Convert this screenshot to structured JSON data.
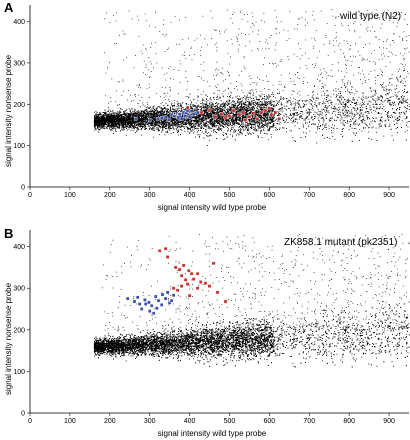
{
  "chart_data": [
    {
      "type": "scatter",
      "panel_label": "A",
      "title": "wild type (N2)",
      "xlabel": "signal intensity wild type probe",
      "ylabel": "signal intensity nonsense probe",
      "xlim": [
        0,
        950
      ],
      "ylim": [
        0,
        440
      ],
      "xticks": [
        "0",
        "100",
        "200",
        "300",
        "400",
        "500",
        "600",
        "700",
        "800",
        "900"
      ],
      "yticks": [
        "0",
        "100",
        "200",
        "300",
        "400"
      ],
      "grid": false,
      "background_cloud": {
        "description": "dense black point cloud, ~15000 probes",
        "x_range": [
          160,
          950
        ],
        "y_center_start": 160,
        "y_center_end": 190,
        "y_spread_start": 14,
        "y_spread_end": 55,
        "sparse_x_max": 950,
        "sparse_y_max": 430
      },
      "series": [
        {
          "color": "#3a4fa8",
          "points": [
            [
              265,
              165
            ],
            [
              300,
              162
            ],
            [
              320,
              165
            ],
            [
              340,
              168
            ],
            [
              355,
              175
            ],
            [
              365,
              172
            ],
            [
              375,
              176
            ],
            [
              385,
              180
            ],
            [
              392,
              178
            ],
            [
              400,
              170
            ],
            [
              405,
              183
            ],
            [
              330,
              167
            ],
            [
              348,
              163
            ],
            [
              362,
              171
            ],
            [
              372,
              168
            ],
            [
              395,
              185
            ],
            [
              410,
              176
            ],
            [
              380,
              164
            ],
            [
              388,
              172
            ],
            [
              420,
              180
            ]
          ]
        },
        {
          "color": "#c83030",
          "points": [
            [
              395,
              192
            ],
            [
              430,
              180
            ],
            [
              450,
              185
            ],
            [
              465,
              170
            ],
            [
              480,
              177
            ],
            [
              500,
              172
            ],
            [
              510,
              185
            ],
            [
              525,
              175
            ],
            [
              535,
              180
            ],
            [
              550,
              170
            ],
            [
              560,
              178
            ],
            [
              570,
              165
            ],
            [
              580,
              180
            ],
            [
              590,
              185
            ],
            [
              600,
              190
            ],
            [
              605,
              175
            ],
            [
              615,
              180
            ],
            [
              625,
              165
            ],
            [
              540,
              162
            ],
            [
              490,
              168
            ]
          ]
        }
      ]
    },
    {
      "type": "scatter",
      "panel_label": "B",
      "title": "ZK858.1 mutant (pk2351)",
      "xlabel": "signal intensity wild type probe",
      "ylabel": "signal intensity nonsense probe",
      "xlim": [
        0,
        950
      ],
      "ylim": [
        0,
        440
      ],
      "xticks": [
        "0",
        "100",
        "200",
        "300",
        "400",
        "500",
        "600",
        "700",
        "800",
        "900"
      ],
      "yticks": [
        "0",
        "100",
        "200",
        "300",
        "400"
      ],
      "grid": false,
      "background_cloud": {
        "description": "dense black point cloud, ~15000 probes",
        "x_range": [
          160,
          950
        ],
        "y_center_start": 160,
        "y_center_end": 190,
        "y_spread_start": 14,
        "y_spread_end": 55,
        "sparse_x_max": 950,
        "sparse_y_max": 430
      },
      "series": [
        {
          "color": "#3a4fa8",
          "points": [
            [
              245,
              275
            ],
            [
              262,
              268
            ],
            [
              275,
              262
            ],
            [
              288,
              272
            ],
            [
              298,
              266
            ],
            [
              305,
              258
            ],
            [
              315,
              280
            ],
            [
              322,
              270
            ],
            [
              332,
              285
            ],
            [
              340,
              275
            ],
            [
              350,
              265
            ],
            [
              360,
              283
            ],
            [
              300,
              245
            ],
            [
              318,
              252
            ],
            [
              330,
              260
            ],
            [
              345,
              290
            ],
            [
              280,
              250
            ],
            [
              290,
              262
            ],
            [
              270,
              278
            ],
            [
              310,
              240
            ],
            [
              355,
              270
            ]
          ]
        },
        {
          "color": "#c83030",
          "points": [
            [
              325,
              390
            ],
            [
              340,
              395
            ],
            [
              345,
              375
            ],
            [
              365,
              350
            ],
            [
              375,
              345
            ],
            [
              380,
              330
            ],
            [
              390,
              320
            ],
            [
              398,
              342
            ],
            [
              405,
              335
            ],
            [
              410,
              322
            ],
            [
              420,
              300
            ],
            [
              428,
              315
            ],
            [
              440,
              312
            ],
            [
              450,
              305
            ],
            [
              460,
              360
            ],
            [
              380,
              305
            ],
            [
              400,
              282
            ],
            [
              370,
              295
            ],
            [
              360,
              300
            ],
            [
              395,
              310
            ],
            [
              420,
              335
            ],
            [
              490,
              268
            ],
            [
              470,
              290
            ],
            [
              385,
              355
            ]
          ]
        }
      ]
    }
  ]
}
